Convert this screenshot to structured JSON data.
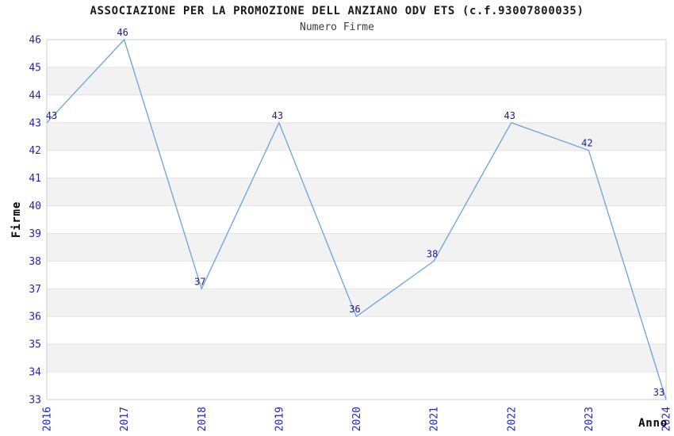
{
  "chart_data": {
    "type": "line",
    "title": "ASSOCIAZIONE PER LA PROMOZIONE DELL ANZIANO ODV ETS (c.f.93007800035)",
    "subtitle": "Numero Firme",
    "xlabel": "Anno",
    "ylabel": "Firme",
    "categories": [
      "2016",
      "2017",
      "2018",
      "2019",
      "2020",
      "2021",
      "2022",
      "2023",
      "2024"
    ],
    "series": [
      {
        "name": "Numero Firme",
        "values": [
          43,
          46,
          37,
          43,
          36,
          38,
          43,
          42,
          33
        ]
      }
    ],
    "ylim": [
      33,
      46
    ],
    "ytick_step": 1,
    "yticks": [
      33,
      34,
      35,
      36,
      37,
      38,
      39,
      40,
      41,
      42,
      43,
      44,
      45,
      46
    ],
    "grid": "horizontal-gridlines-with-alternating-bands",
    "legend": "none",
    "markers": "none",
    "data_labels": true,
    "colors": {
      "line": "#6BA1DF",
      "tick_label": "#2222CC",
      "data_label": "#1C1C8C",
      "band": "#F2F2F2",
      "gridline": "#E3E3E3",
      "border": "#CCCCCC",
      "title": "#1A1A1A",
      "subtitle": "#3D3D3D",
      "axis_label": "#000000",
      "background": "#FFFFFF"
    }
  }
}
